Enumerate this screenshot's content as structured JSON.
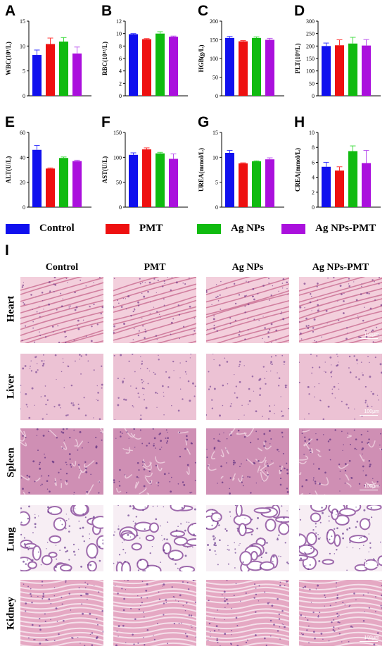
{
  "colors": {
    "Control": "#1010ee",
    "PMT": "#ee1010",
    "Ag NPs": "#10bb10",
    "Ag NPs-PMT": "#aa10dd",
    "error_Control": "#3a3aff",
    "error_PMT": "#ff3a3a",
    "error_AgNPs": "#40dd40",
    "error_AgNPsPMT": "#bb55ee"
  },
  "chart_data": [
    {
      "panel": "A",
      "type": "bar",
      "ylabel": "WBC(10⁹/L)",
      "ylim": [
        0,
        15
      ],
      "yticks": [
        "0",
        "5",
        "10",
        "15"
      ],
      "categories": [
        "Control",
        "PMT",
        "Ag NPs",
        "Ag NPs-PMT"
      ],
      "values": [
        8.2,
        10.4,
        10.9,
        8.5
      ],
      "errors": [
        1.0,
        1.2,
        0.8,
        1.3
      ]
    },
    {
      "panel": "B",
      "type": "bar",
      "ylabel": "RBC(10¹²/L)",
      "ylim": [
        0,
        12
      ],
      "yticks": [
        "0",
        "2",
        "4",
        "6",
        "8",
        "10",
        "12"
      ],
      "categories": [
        "Control",
        "PMT",
        "Ag NPs",
        "Ag NPs-PMT"
      ],
      "values": [
        9.9,
        9.1,
        10.0,
        9.5
      ],
      "errors": [
        0.1,
        0.1,
        0.3,
        0.1
      ]
    },
    {
      "panel": "C",
      "type": "bar",
      "ylabel": "HGB(g/L)",
      "ylim": [
        0,
        200
      ],
      "yticks": [
        "0",
        "50",
        "100",
        "150",
        "200"
      ],
      "categories": [
        "Control",
        "PMT",
        "Ag NPs",
        "Ag NPs-PMT"
      ],
      "values": [
        155,
        146,
        155,
        150
      ],
      "errors": [
        4,
        2,
        3,
        4
      ]
    },
    {
      "panel": "D",
      "type": "bar",
      "ylabel": "PLT(10⁹/L)",
      "ylim": [
        0,
        300
      ],
      "yticks": [
        "0",
        "50",
        "100",
        "150",
        "200",
        "250",
        "300"
      ],
      "categories": [
        "Control",
        "PMT",
        "Ag NPs",
        "Ag NPs-PMT"
      ],
      "values": [
        200,
        203,
        210,
        202
      ],
      "errors": [
        12,
        22,
        25,
        24
      ]
    },
    {
      "panel": "E",
      "type": "bar",
      "ylabel": "ALT(U/L)",
      "ylim": [
        0,
        60
      ],
      "yticks": [
        "0",
        "20",
        "40",
        "60"
      ],
      "categories": [
        "Control",
        "PMT",
        "Ag NPs",
        "Ag NPs-PMT"
      ],
      "values": [
        46,
        31,
        39.5,
        37
      ],
      "errors": [
        3.5,
        0.5,
        0.8,
        0.7
      ]
    },
    {
      "panel": "F",
      "type": "bar",
      "ylabel": "AST(U/L)",
      "ylim": [
        0,
        150
      ],
      "yticks": [
        "0",
        "50",
        "100",
        "150"
      ],
      "categories": [
        "Control",
        "PMT",
        "Ag NPs",
        "Ag NPs-PMT"
      ],
      "values": [
        105,
        116,
        108,
        97
      ],
      "errors": [
        4,
        3,
        2,
        10
      ]
    },
    {
      "panel": "G",
      "type": "bar",
      "ylabel": "UREA(mmol/L)",
      "ylim": [
        0,
        15
      ],
      "yticks": [
        "0",
        "5",
        "10",
        "15"
      ],
      "categories": [
        "Control",
        "PMT",
        "Ag NPs",
        "Ag NPs-PMT"
      ],
      "values": [
        10.9,
        8.8,
        9.2,
        9.6
      ],
      "errors": [
        0.5,
        0.1,
        0.1,
        0.3
      ]
    },
    {
      "panel": "H",
      "type": "bar",
      "ylabel": "CREA(mmol/L)",
      "ylim": [
        0,
        10
      ],
      "yticks": [
        "0",
        "2",
        "4",
        "6",
        "8",
        "10"
      ],
      "categories": [
        "Control",
        "PMT",
        "Ag NPs",
        "Ag NPs-PMT"
      ],
      "values": [
        5.4,
        4.9,
        7.5,
        5.9
      ],
      "errors": [
        0.6,
        0.5,
        0.7,
        1.7
      ]
    }
  ],
  "legend": [
    "Control",
    "PMT",
    "Ag NPs",
    "Ag NPs-PMT"
  ],
  "histology": {
    "panel": "I",
    "columns": [
      "Control",
      "PMT",
      "Ag NPs",
      "Ag NPs-PMT"
    ],
    "rows": [
      "Heart",
      "Liver",
      "Spleen",
      "Lung",
      "Kidney"
    ],
    "scale_text": "100μm"
  }
}
